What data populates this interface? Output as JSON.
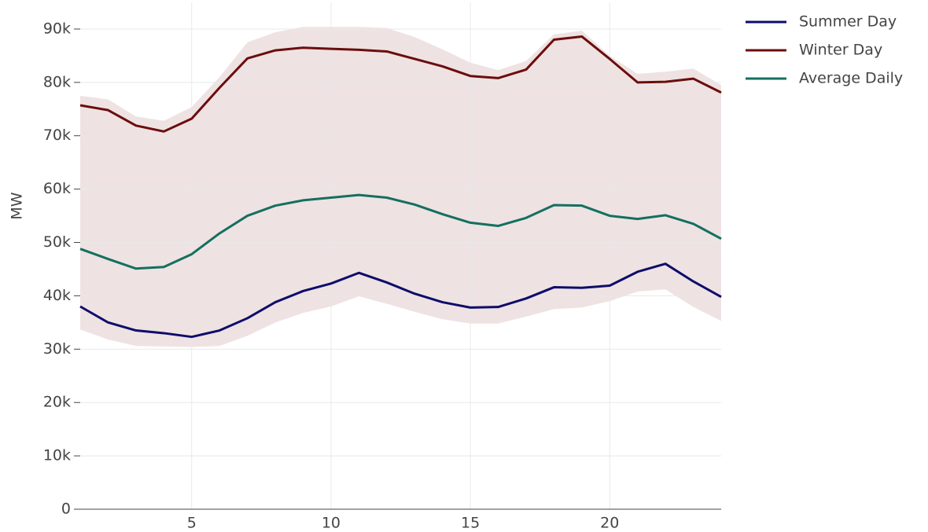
{
  "chart_data": {
    "type": "line",
    "y_label": "MW",
    "x": [
      1,
      2,
      3,
      4,
      5,
      6,
      7,
      8,
      9,
      10,
      11,
      12,
      13,
      14,
      15,
      16,
      17,
      18,
      19,
      20,
      21,
      22,
      23,
      24
    ],
    "series": [
      {
        "name": "Summer Day",
        "color": "#0d0d6b",
        "values": [
          38000,
          35000,
          33500,
          33000,
          32300,
          33500,
          35800,
          38800,
          40900,
          42300,
          44300,
          42500,
          40400,
          38800,
          37800,
          37900,
          39500,
          41600,
          41500,
          41900,
          44500,
          46000,
          42700,
          39800
        ]
      },
      {
        "name": "Winter Day",
        "color": "#6b0d0d",
        "values": [
          75700,
          74800,
          71900,
          70800,
          73200,
          79000,
          84500,
          86000,
          86500,
          86300,
          86100,
          85800,
          84400,
          83000,
          81200,
          80800,
          82400,
          88000,
          88600,
          84400,
          80000,
          80100,
          80700,
          78100
        ]
      },
      {
        "name": "Average Daily",
        "color": "#137060",
        "values": [
          48800,
          46900,
          45100,
          45400,
          47800,
          51700,
          55000,
          56900,
          57900,
          58400,
          58900,
          58400,
          57100,
          55300,
          53700,
          53100,
          54600,
          57000,
          56900,
          55000,
          54400,
          55100,
          53500,
          50700
        ]
      }
    ],
    "band": {
      "color": "#efe2e2",
      "upper": [
        77500,
        76800,
        73600,
        72800,
        75400,
        81000,
        87500,
        89400,
        90400,
        90400,
        90400,
        90200,
        88500,
        86200,
        83700,
        82300,
        84000,
        89000,
        89700,
        85000,
        81600,
        82000,
        82600,
        79500
      ],
      "lower": [
        33700,
        31800,
        30600,
        30500,
        30400,
        30600,
        32500,
        35000,
        36800,
        38000,
        39900,
        38500,
        37000,
        35600,
        34800,
        34800,
        36100,
        37500,
        37800,
        39000,
        40800,
        41200,
        37900,
        35300
      ]
    },
    "xlim": [
      1,
      24
    ],
    "xticks": [
      5,
      10,
      15,
      20
    ],
    "ylim": [
      0,
      95000
    ],
    "yticks": [
      0,
      {
        "value": 10000,
        "label": "10k"
      },
      {
        "value": 20000,
        "label": "20k"
      },
      {
        "value": 30000,
        "label": "30k"
      },
      {
        "value": 40000,
        "label": "40k"
      },
      {
        "value": 50000,
        "label": "50k"
      },
      {
        "value": 60000,
        "label": "60k"
      },
      {
        "value": 70000,
        "label": "70k"
      },
      {
        "value": 80000,
        "label": "80k"
      },
      {
        "value": 90000,
        "label": "90k"
      }
    ],
    "grid": true,
    "legend": "top-right"
  }
}
